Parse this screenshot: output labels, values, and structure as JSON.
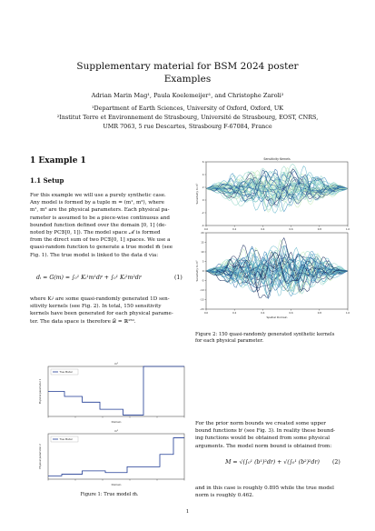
{
  "paper": {
    "title_line1": "Supplementary material for BSM 2024 poster",
    "title_line2": "Examples",
    "authors": "Adrian Marin Mag¹, Paula Koelemeijer¹, and Christophe Zaroli²",
    "affiliation1": "¹Department of Earth Sciences, University of Oxford, Oxford, UK",
    "affiliation2": "²Institut Terre et Environnement de Strasbourg, Université de Strasbourg, EOST, CNRS,",
    "affiliation3": "UMR 7063, 5 rue Descartes, Strasbourg F-67084, France",
    "section_heading": "1   Example 1",
    "subsection_heading": "1.1   Setup",
    "para1_lines": [
      "For this example we will use a purely synthetic case.",
      "Any model is formed by a tuple m = (m¹, m²), where",
      "m¹, m² are the physical parameters. Each physical pa-",
      "rameter is assumed to be a piece-wise continuous and",
      "bounded function defined over the domain [0, 1] (de-",
      "noted by PC𝔅[0, 1]). The model space ℳ is formed",
      "from the direct sum of two PC𝔅[0, 1] spaces. We use a",
      "quasi-random function to generate a true model m̄ (see",
      "Fig. 1). The true model is linked to the data d via:"
    ],
    "equation1": "dᵢ = G(m) = ∫₀¹ Kᵢ¹m¹dr + ∫₀¹ Kᵢ²m²dr",
    "equation1_number": "(1)",
    "para2_lines": [
      "where Kᵢʲ are some quasi-randomly generated 1D sen-",
      "sitivity kernels (see Fig. 2). In total, 150 sensitivity",
      "kernels have been generated for each physical parame-",
      "ter. The data space is therefore 𝒟 = ℝ¹⁵⁰."
    ],
    "fig2_caption_lines": [
      "Figure 2: 150 quasi-randomly generated synthetic kernels",
      "for each physical parameter."
    ],
    "para3_lines": [
      "For the prior norm bounds we created some upper",
      "bound functions bⁱ (see Fig. 3). In reality these bound-",
      "ing functions would be obtained from some physical",
      "arguments. The model norm bound is obtained from:"
    ],
    "equation2": "M = √(∫₀¹ (b¹)²dr) + √(∫₀¹ (b²)²dr)",
    "equation2_number": "(2)",
    "para4_lines": [
      "and in this case is roughly 0.895 while the true model",
      "norm is roughly 0.462."
    ],
    "fig1_caption": "Figure 1: True model m̄.",
    "page_number": "1"
  },
  "chart_data": [
    {
      "type": "line",
      "title": "Sensitivity Kernels",
      "xlabel": "",
      "ylabel": "Sensitivity to m¹",
      "xlim": [
        0,
        1
      ],
      "ylim": [
        -4,
        6
      ],
      "xticks": [
        "0.0",
        "0.2",
        "0.4",
        "0.6",
        "0.8",
        "1.0"
      ],
      "yticks": [
        "-4",
        "-2",
        "0",
        "2",
        "4",
        "6"
      ],
      "series_count": 150,
      "colormap": [
        "#0b1d51",
        "#12407a",
        "#2a6aa5",
        "#3f8fc0",
        "#5fb4c8",
        "#8fd3c6",
        "#c6ebb8"
      ]
    },
    {
      "type": "line",
      "title": "",
      "xlabel": "Spatial Domain",
      "ylabel": "Sensitivity to m²",
      "xlim": [
        0,
        1
      ],
      "ylim": [
        -20,
        20
      ],
      "xticks": [
        "0.0",
        "0.2",
        "0.4",
        "0.6",
        "0.8",
        "1.0"
      ],
      "yticks": [
        "-20",
        "-15",
        "-10",
        "-5",
        "0",
        "5",
        "10",
        "15",
        "20"
      ],
      "series_count": 150,
      "colormap": [
        "#0b1d51",
        "#12407a",
        "#2a6aa5",
        "#3f8fc0",
        "#5fb4c8",
        "#8fd3c6",
        "#c6ebb8"
      ]
    },
    {
      "type": "line",
      "title": "m¹",
      "xlabel": "Domain",
      "ylabel": "Physical parameter 1",
      "legend": "True Model",
      "legend_position": "top-left",
      "x": [
        0,
        0.12,
        0.12,
        0.25,
        0.25,
        0.38,
        0.38,
        0.55,
        0.55,
        0.7,
        0.7,
        1.0
      ],
      "y": [
        -0.05,
        -0.05,
        -0.12,
        -0.12,
        -0.2,
        -0.2,
        -0.3,
        -0.3,
        -0.38,
        -0.38,
        0.3,
        0.3
      ],
      "xlim": [
        0,
        1
      ],
      "ylim": [
        -0.4,
        0.3
      ],
      "color": "#1f3a93"
    },
    {
      "type": "line",
      "title": "m²",
      "xlabel": "Domain",
      "ylabel": "Physical parameter 2",
      "legend": "True Model",
      "legend_position": "top-left",
      "x": [
        0,
        0.1,
        0.1,
        0.25,
        0.25,
        0.42,
        0.42,
        0.58,
        0.58,
        0.82,
        0.82,
        0.92,
        0.92,
        1.0
      ],
      "y": [
        0.04,
        0.04,
        0.06,
        0.06,
        0.1,
        0.1,
        0.08,
        0.08,
        0.15,
        0.15,
        0.3,
        0.3,
        0.5,
        0.5
      ],
      "xlim": [
        0,
        1
      ],
      "ylim": [
        0,
        0.55
      ],
      "color": "#1f3a93"
    }
  ]
}
